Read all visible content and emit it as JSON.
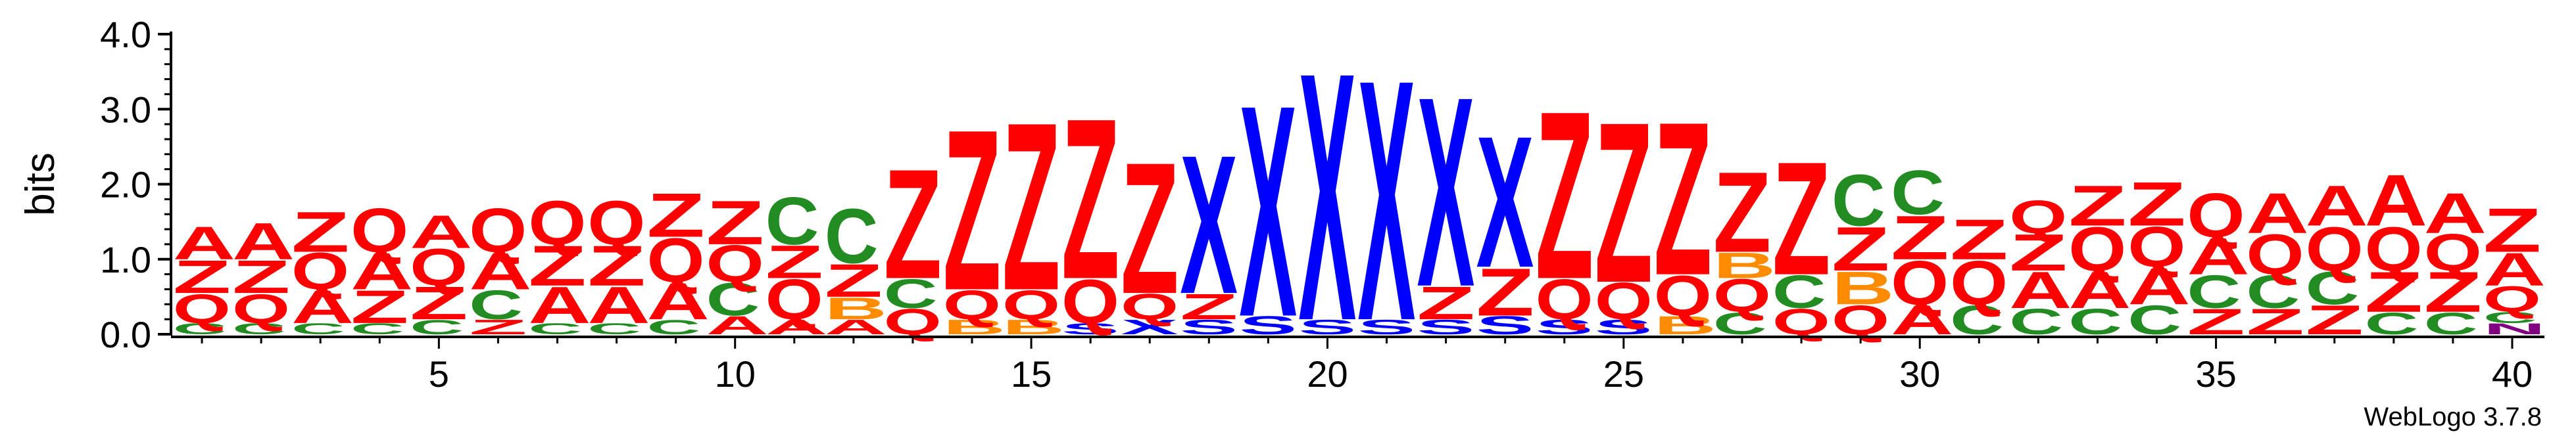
{
  "chart_data": {
    "type": "sequence-logo",
    "ylabel": "bits",
    "ylim": [
      0,
      4.0
    ],
    "y_ticks": [
      "0.0",
      "1.0",
      "2.0",
      "3.0",
      "4.0"
    ],
    "y_tick_values": [
      0,
      1,
      2,
      3,
      4
    ],
    "x_ticks": [
      "5",
      "10",
      "15",
      "20",
      "25",
      "30",
      "35",
      "40"
    ],
    "x_tick_values": [
      5,
      10,
      15,
      20,
      25,
      30,
      35,
      40
    ],
    "footer": "WebLogo 3.7.8",
    "colors": {
      "A": "#ff0000",
      "Z": "#ff0000",
      "Q": "#ff0000",
      "X": "#0000ff",
      "C": "#228b22",
      "B": "#ff8c00",
      "S": "#0000ff",
      "G": "#228b22",
      "N": "#800080",
      "T": "#228b22",
      "E": "#ff0000",
      "D": "#ff0000"
    },
    "positions": [
      {
        "position": 1,
        "letters": [
          [
            "C",
            0.15
          ],
          [
            "Q",
            0.4
          ],
          [
            "Z",
            0.45
          ],
          [
            "A",
            0.45
          ]
        ]
      },
      {
        "position": 2,
        "letters": [
          [
            "C",
            0.15
          ],
          [
            "Q",
            0.4
          ],
          [
            "Z",
            0.45
          ],
          [
            "A",
            0.5
          ]
        ]
      },
      {
        "position": 3,
        "letters": [
          [
            "C",
            0.15
          ],
          [
            "A",
            0.45
          ],
          [
            "Q",
            0.5
          ],
          [
            "Z",
            0.55
          ]
        ]
      },
      {
        "position": 4,
        "letters": [
          [
            "C",
            0.15
          ],
          [
            "Z",
            0.45
          ],
          [
            "A",
            0.5
          ],
          [
            "Q",
            0.6
          ]
        ]
      },
      {
        "position": 5,
        "letters": [
          [
            "C",
            0.2
          ],
          [
            "Z",
            0.45
          ],
          [
            "Q",
            0.5
          ],
          [
            "A",
            0.45
          ]
        ]
      },
      {
        "position": 6,
        "letters": [
          [
            "Z",
            0.2
          ],
          [
            "C",
            0.4
          ],
          [
            "A",
            0.5
          ],
          [
            "Q",
            0.6
          ]
        ]
      },
      {
        "position": 7,
        "letters": [
          [
            "C",
            0.15
          ],
          [
            "A",
            0.5
          ],
          [
            "Z",
            0.55
          ],
          [
            "Q",
            0.6
          ]
        ]
      },
      {
        "position": 8,
        "letters": [
          [
            "C",
            0.15
          ],
          [
            "A",
            0.5
          ],
          [
            "Z",
            0.55
          ],
          [
            "Q",
            0.6
          ]
        ]
      },
      {
        "position": 9,
        "letters": [
          [
            "C",
            0.2
          ],
          [
            "A",
            0.5
          ],
          [
            "Q",
            0.6
          ],
          [
            "Z",
            0.6
          ]
        ]
      },
      {
        "position": 10,
        "letters": [
          [
            "A",
            0.25
          ],
          [
            "C",
            0.45
          ],
          [
            "Q",
            0.5
          ],
          [
            "Z",
            0.6
          ]
        ]
      },
      {
        "position": 11,
        "letters": [
          [
            "A",
            0.2
          ],
          [
            "Q",
            0.55
          ],
          [
            "Z",
            0.45
          ],
          [
            "C",
            0.65
          ]
        ]
      },
      {
        "position": 12,
        "letters": [
          [
            "A",
            0.2
          ],
          [
            "B",
            0.3
          ],
          [
            "Z",
            0.45
          ],
          [
            "C",
            0.75
          ]
        ]
      },
      {
        "position": 13,
        "letters": [
          [
            "Q",
            0.35
          ],
          [
            "C",
            0.4
          ],
          [
            "Z",
            1.5
          ]
        ]
      },
      {
        "position": 14,
        "letters": [
          [
            "B",
            0.2
          ],
          [
            "Q",
            0.4
          ],
          [
            "Z",
            2.2
          ]
        ]
      },
      {
        "position": 15,
        "letters": [
          [
            "B",
            0.2
          ],
          [
            "Q",
            0.4
          ],
          [
            "Z",
            2.3
          ]
        ]
      },
      {
        "position": 16,
        "letters": [
          [
            "S",
            0.15
          ],
          [
            "Q",
            0.6
          ],
          [
            "Z",
            2.2
          ]
        ]
      },
      {
        "position": 17,
        "letters": [
          [
            "X",
            0.2
          ],
          [
            "Q",
            0.35
          ],
          [
            "Z",
            1.8
          ]
        ]
      },
      {
        "position": 18,
        "letters": [
          [
            "S",
            0.2
          ],
          [
            "Z",
            0.35
          ],
          [
            "X",
            1.9
          ]
        ]
      },
      {
        "position": 19,
        "letters": [
          [
            "S",
            0.25
          ],
          [
            "X",
            2.9
          ]
        ]
      },
      {
        "position": 20,
        "letters": [
          [
            "S",
            0.2
          ],
          [
            "X",
            3.4
          ]
        ]
      },
      {
        "position": 21,
        "letters": [
          [
            "S",
            0.2
          ],
          [
            "X",
            3.3
          ]
        ]
      },
      {
        "position": 22,
        "letters": [
          [
            "S",
            0.2
          ],
          [
            "Z",
            0.45
          ],
          [
            "X",
            2.6
          ]
        ]
      },
      {
        "position": 23,
        "letters": [
          [
            "S",
            0.25
          ],
          [
            "Z",
            0.65
          ],
          [
            "X",
            1.8
          ]
        ]
      },
      {
        "position": 24,
        "letters": [
          [
            "S",
            0.2
          ],
          [
            "Q",
            0.55
          ],
          [
            "Z",
            2.3
          ]
        ]
      },
      {
        "position": 25,
        "letters": [
          [
            "S",
            0.2
          ],
          [
            "Q",
            0.5
          ],
          [
            "Z",
            2.2
          ]
        ]
      },
      {
        "position": 26,
        "letters": [
          [
            "B",
            0.25
          ],
          [
            "Q",
            0.55
          ],
          [
            "Z",
            2.1
          ]
        ]
      },
      {
        "position": 27,
        "letters": [
          [
            "C",
            0.3
          ],
          [
            "Q",
            0.45
          ],
          [
            "B",
            0.35
          ],
          [
            "Z",
            1.1
          ]
        ]
      },
      {
        "position": 28,
        "letters": [
          [
            "Q",
            0.35
          ],
          [
            "C",
            0.45
          ],
          [
            "Z",
            1.55
          ]
        ]
      },
      {
        "position": 29,
        "letters": [
          [
            "Q",
            0.4
          ],
          [
            "B",
            0.45
          ],
          [
            "Z",
            0.6
          ],
          [
            "C",
            0.7
          ]
        ]
      },
      {
        "position": 30,
        "letters": [
          [
            "A",
            0.4
          ],
          [
            "Q",
            0.6
          ],
          [
            "Z",
            0.6
          ],
          [
            "C",
            0.6
          ]
        ]
      },
      {
        "position": 31,
        "letters": [
          [
            "C",
            0.4
          ],
          [
            "Q",
            0.6
          ],
          [
            "Z",
            0.55
          ]
        ]
      },
      {
        "position": 32,
        "letters": [
          [
            "C",
            0.35
          ],
          [
            "A",
            0.5
          ],
          [
            "Z",
            0.5
          ],
          [
            "Q",
            0.45
          ]
        ]
      },
      {
        "position": 33,
        "letters": [
          [
            "C",
            0.35
          ],
          [
            "A",
            0.5
          ],
          [
            "Q",
            0.6
          ],
          [
            "Z",
            0.55
          ]
        ]
      },
      {
        "position": 34,
        "letters": [
          [
            "C",
            0.4
          ],
          [
            "A",
            0.5
          ],
          [
            "Q",
            0.55
          ],
          [
            "Z",
            0.6
          ]
        ]
      },
      {
        "position": 35,
        "letters": [
          [
            "Z",
            0.35
          ],
          [
            "C",
            0.45
          ],
          [
            "A",
            0.5
          ],
          [
            "Q",
            0.6
          ]
        ]
      },
      {
        "position": 36,
        "letters": [
          [
            "Z",
            0.35
          ],
          [
            "C",
            0.45
          ],
          [
            "Q",
            0.55
          ],
          [
            "A",
            0.55
          ]
        ]
      },
      {
        "position": 37,
        "letters": [
          [
            "Z",
            0.4
          ],
          [
            "C",
            0.45
          ],
          [
            "Q",
            0.6
          ],
          [
            "A",
            0.55
          ]
        ]
      },
      {
        "position": 38,
        "letters": [
          [
            "C",
            0.3
          ],
          [
            "Z",
            0.55
          ],
          [
            "Q",
            0.6
          ],
          [
            "A",
            0.7
          ]
        ]
      },
      {
        "position": 39,
        "letters": [
          [
            "C",
            0.3
          ],
          [
            "Z",
            0.55
          ],
          [
            "Q",
            0.5
          ],
          [
            "A",
            0.55
          ]
        ]
      },
      {
        "position": 40,
        "letters": [
          [
            "N",
            0.15
          ],
          [
            "C",
            0.15
          ],
          [
            "Q",
            0.35
          ],
          [
            "A",
            0.45
          ],
          [
            "Z",
            0.6
          ]
        ]
      }
    ]
  }
}
